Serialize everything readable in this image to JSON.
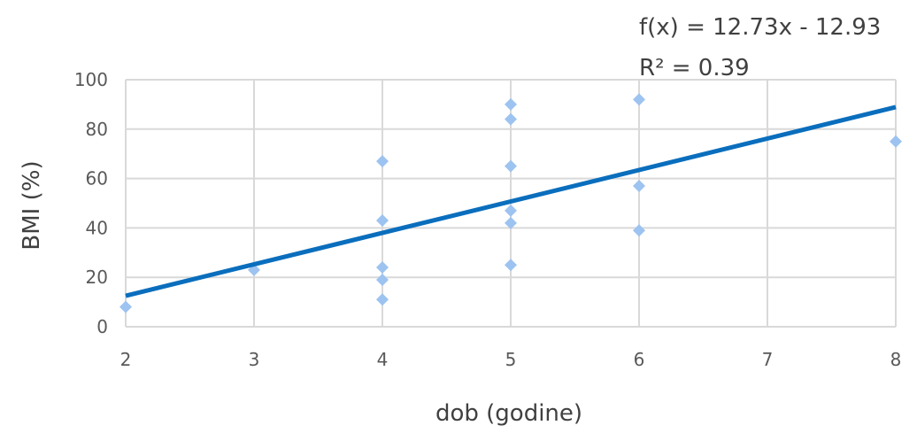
{
  "chart_data": {
    "type": "scatter",
    "title": "",
    "xlabel": "dob (godine)",
    "ylabel": "BMI (%)",
    "xlim": [
      2,
      8
    ],
    "ylim": [
      0,
      100
    ],
    "xticks": [
      2,
      3,
      4,
      5,
      6,
      7,
      8
    ],
    "yticks": [
      0,
      20,
      40,
      60,
      80,
      100
    ],
    "grid": true,
    "points": [
      {
        "x": 2,
        "y": 8
      },
      {
        "x": 3,
        "y": 23
      },
      {
        "x": 4,
        "y": 67
      },
      {
        "x": 4,
        "y": 43
      },
      {
        "x": 4,
        "y": 24
      },
      {
        "x": 4,
        "y": 19
      },
      {
        "x": 4,
        "y": 11
      },
      {
        "x": 5,
        "y": 90
      },
      {
        "x": 5,
        "y": 84
      },
      {
        "x": 5,
        "y": 65
      },
      {
        "x": 5,
        "y": 47
      },
      {
        "x": 5,
        "y": 42
      },
      {
        "x": 5,
        "y": 25
      },
      {
        "x": 6,
        "y": 92
      },
      {
        "x": 6,
        "y": 57
      },
      {
        "x": 6,
        "y": 39
      },
      {
        "x": 8,
        "y": 75
      }
    ],
    "trendline": {
      "slope": 12.73,
      "intercept": -12.93,
      "equation_label": "f(x) = 12.73x - 12.93",
      "r2_label": "R² = 0.39"
    },
    "colors": {
      "points": "#9DC3F0",
      "trendline": "#0A6EBD",
      "grid": "#D9D9D9"
    }
  }
}
